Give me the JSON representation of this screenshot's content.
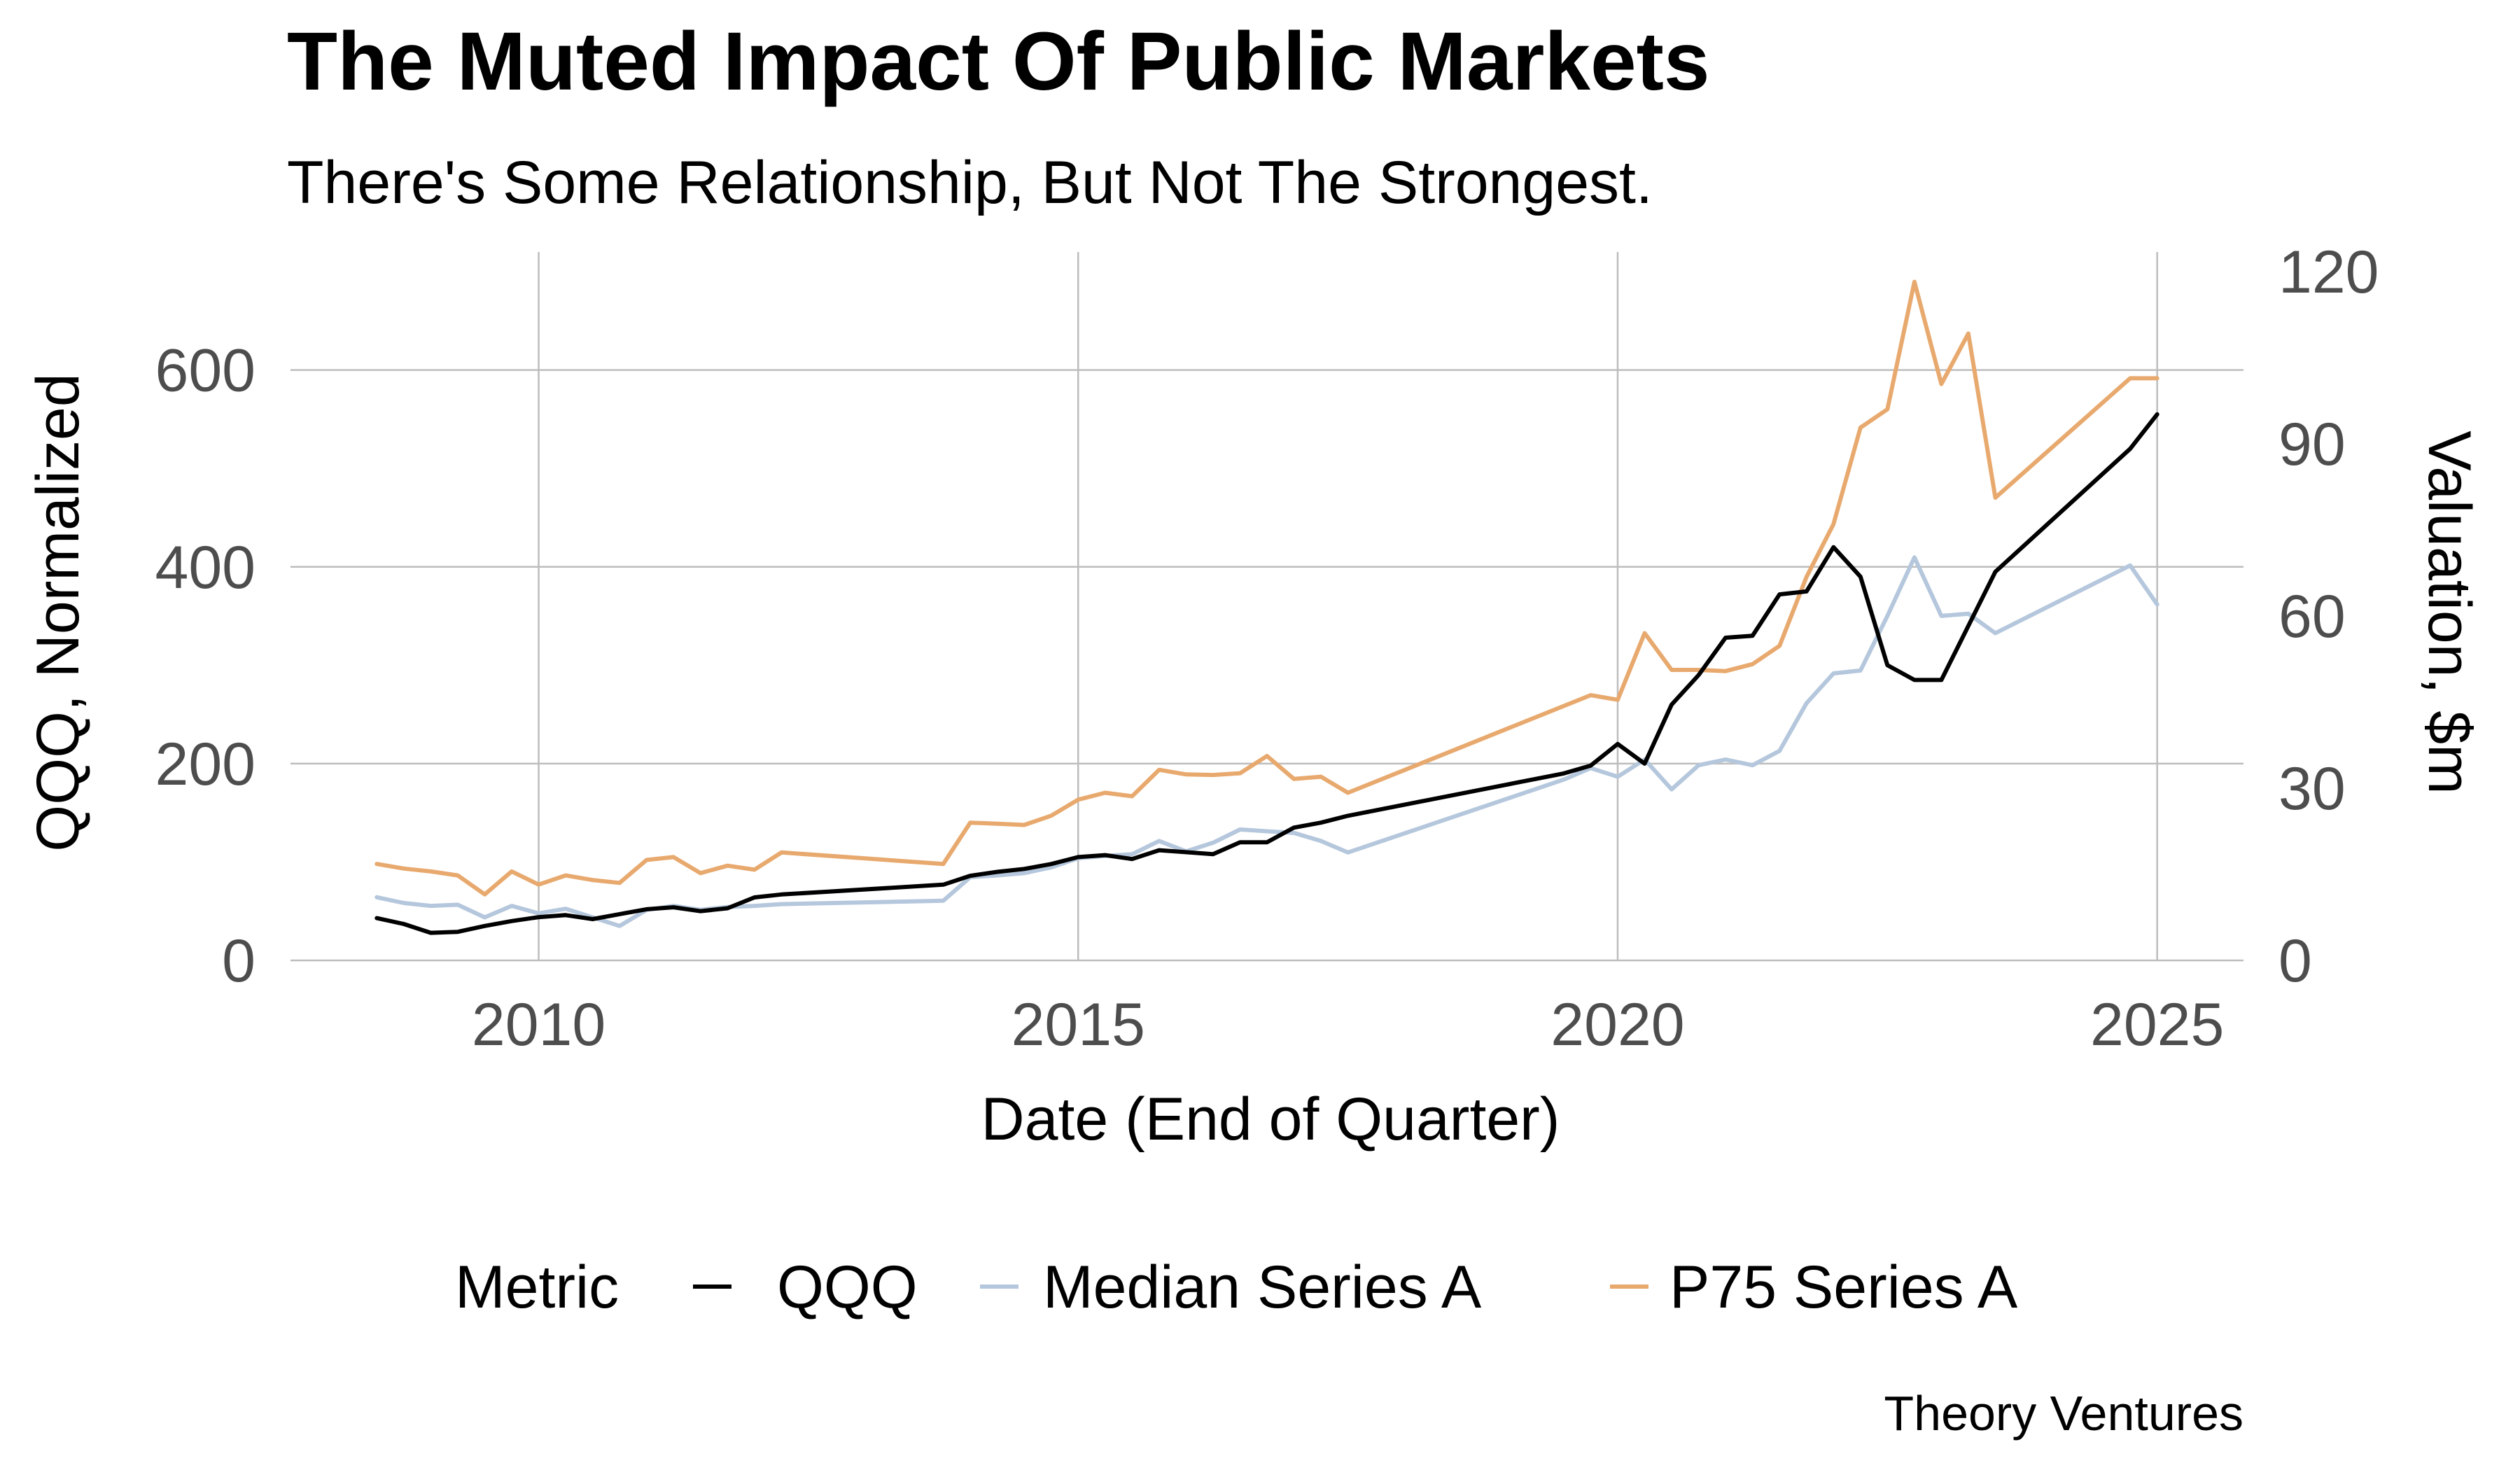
{
  "title": "The Muted Impact Of Public Markets",
  "subtitle": "There's Some Relationship, But Not The Strongest.",
  "caption": "Theory Ventures",
  "chart_data": {
    "type": "line",
    "title": "The Muted Impact Of Public Markets",
    "subtitle": "There's Some Relationship, But Not The Strongest.",
    "xlabel": "Date (End of Quarter)",
    "ylabel_left": "QQQ, Normalized",
    "ylabel_right": "Valuation, $m",
    "xlim": [
      2007.7,
      2025.8
    ],
    "ylim_left": [
      0,
      720
    ],
    "ylim_right": [
      0,
      123.4
    ],
    "x_ticks": [
      2010,
      2015,
      2020,
      2025
    ],
    "x_tick_labels": [
      "2010",
      "2015",
      "2020",
      "2025"
    ],
    "y_left_ticks": [
      0,
      200,
      400,
      600
    ],
    "y_left_tick_labels": [
      "0",
      "200",
      "400",
      "600"
    ],
    "y_right_ticks": [
      0,
      30,
      60,
      90,
      120
    ],
    "y_right_tick_labels": [
      "0",
      "30",
      "60",
      "90",
      "120"
    ],
    "grid": true,
    "legend": {
      "title": "Metric",
      "position": "bottom",
      "entries": [
        "QQQ",
        "Median Series A",
        "P75 Series A"
      ]
    },
    "series": [
      {
        "name": "QQQ",
        "axis": "left",
        "color": "#000000",
        "x": [
          2008.5,
          2008.75,
          2009.0,
          2009.25,
          2009.5,
          2009.75,
          2010.0,
          2010.25,
          2010.5,
          2010.75,
          2011.0,
          2011.25,
          2011.5,
          2011.75,
          2012.0,
          2012.25,
          2013.75,
          2014.0,
          2014.25,
          2014.5,
          2014.75,
          2015.0,
          2015.25,
          2015.5,
          2015.75,
          2016.0,
          2016.25,
          2016.5,
          2016.75,
          2017.0,
          2017.25,
          2017.5,
          2019.5,
          2019.75,
          2020.0,
          2020.25,
          2020.5,
          2020.75,
          2021.0,
          2021.25,
          2021.5,
          2021.75,
          2022.0,
          2022.25,
          2022.5,
          2022.75,
          2023.0,
          2023.5,
          2024.75,
          2025.0
        ],
        "values": [
          43,
          37,
          28,
          29,
          35,
          40,
          44,
          46,
          42,
          47,
          52,
          54,
          50,
          53,
          64,
          67,
          77,
          86,
          90,
          93,
          98,
          105,
          107,
          103,
          112,
          110,
          108,
          120,
          120,
          135,
          140,
          147,
          190,
          198,
          220,
          200,
          260,
          290,
          328,
          330,
          372,
          375,
          420,
          390,
          300,
          285,
          285,
          395,
          520,
          555
        ]
      },
      {
        "name": "Median Series A",
        "axis": "right",
        "color": "#b5c7dc",
        "x": [
          2008.5,
          2008.75,
          2009.0,
          2009.25,
          2009.5,
          2009.75,
          2010.0,
          2010.25,
          2010.5,
          2010.75,
          2011.0,
          2011.25,
          2011.5,
          2011.75,
          2012.0,
          2012.25,
          2013.75,
          2014.0,
          2014.25,
          2014.5,
          2014.75,
          2015.0,
          2015.25,
          2015.5,
          2015.75,
          2016.0,
          2016.25,
          2016.5,
          2016.75,
          2017.0,
          2017.25,
          2017.5,
          2019.5,
          2019.75,
          2020.0,
          2020.25,
          2020.5,
          2020.75,
          2021.0,
          2021.25,
          2021.5,
          2021.75,
          2022.0,
          2022.25,
          2022.5,
          2022.75,
          2023.0,
          2023.25,
          2023.5,
          2024.75,
          2025.0
        ],
        "values": [
          11.0,
          10.0,
          9.5,
          9.7,
          7.5,
          9.5,
          8.2,
          9.0,
          7.5,
          6.0,
          8.8,
          9.5,
          8.8,
          9.3,
          9.5,
          9.8,
          10.4,
          14.5,
          14.8,
          15.2,
          16.2,
          17.8,
          18.2,
          18.5,
          20.8,
          19.0,
          20.5,
          22.8,
          22.5,
          22.2,
          20.8,
          18.8,
          31.5,
          33.5,
          32.0,
          35.0,
          29.8,
          34.0,
          35.0,
          34.0,
          36.5,
          44.8,
          50.0,
          50.5,
          60.0,
          70.2,
          60.0,
          60.4,
          57.0,
          68.8,
          62.0
        ]
      },
      {
        "name": "P75 Series A",
        "axis": "right",
        "color": "#e8a96e",
        "x": [
          2008.5,
          2008.75,
          2009.0,
          2009.25,
          2009.5,
          2009.75,
          2010.0,
          2010.25,
          2010.5,
          2010.75,
          2011.0,
          2011.25,
          2011.5,
          2011.75,
          2012.0,
          2012.25,
          2013.75,
          2014.0,
          2014.25,
          2014.5,
          2014.75,
          2015.0,
          2015.25,
          2015.5,
          2015.75,
          2016.0,
          2016.25,
          2016.5,
          2016.75,
          2017.0,
          2017.25,
          2017.5,
          2019.75,
          2020.0,
          2020.25,
          2020.5,
          2020.75,
          2021.0,
          2021.25,
          2021.5,
          2021.75,
          2022.0,
          2022.25,
          2022.5,
          2022.75,
          2023.0,
          2023.25,
          2023.5,
          2024.75,
          2025.0
        ],
        "values": [
          16.8,
          16.0,
          15.5,
          14.8,
          11.5,
          15.5,
          13.2,
          14.8,
          14.0,
          13.5,
          17.5,
          18.0,
          15.2,
          16.5,
          15.8,
          18.8,
          16.8,
          24.0,
          23.8,
          23.6,
          25.2,
          28.0,
          29.2,
          28.6,
          33.2,
          32.4,
          32.3,
          32.6,
          35.6,
          31.6,
          32.0,
          29.2,
          46.2,
          45.4,
          57.0,
          50.6,
          50.6,
          50.4,
          51.6,
          54.8,
          66.8,
          76.0,
          92.8,
          96.0,
          118.2,
          100.4,
          109.2,
          80.6,
          101.4,
          101.4
        ]
      }
    ]
  }
}
